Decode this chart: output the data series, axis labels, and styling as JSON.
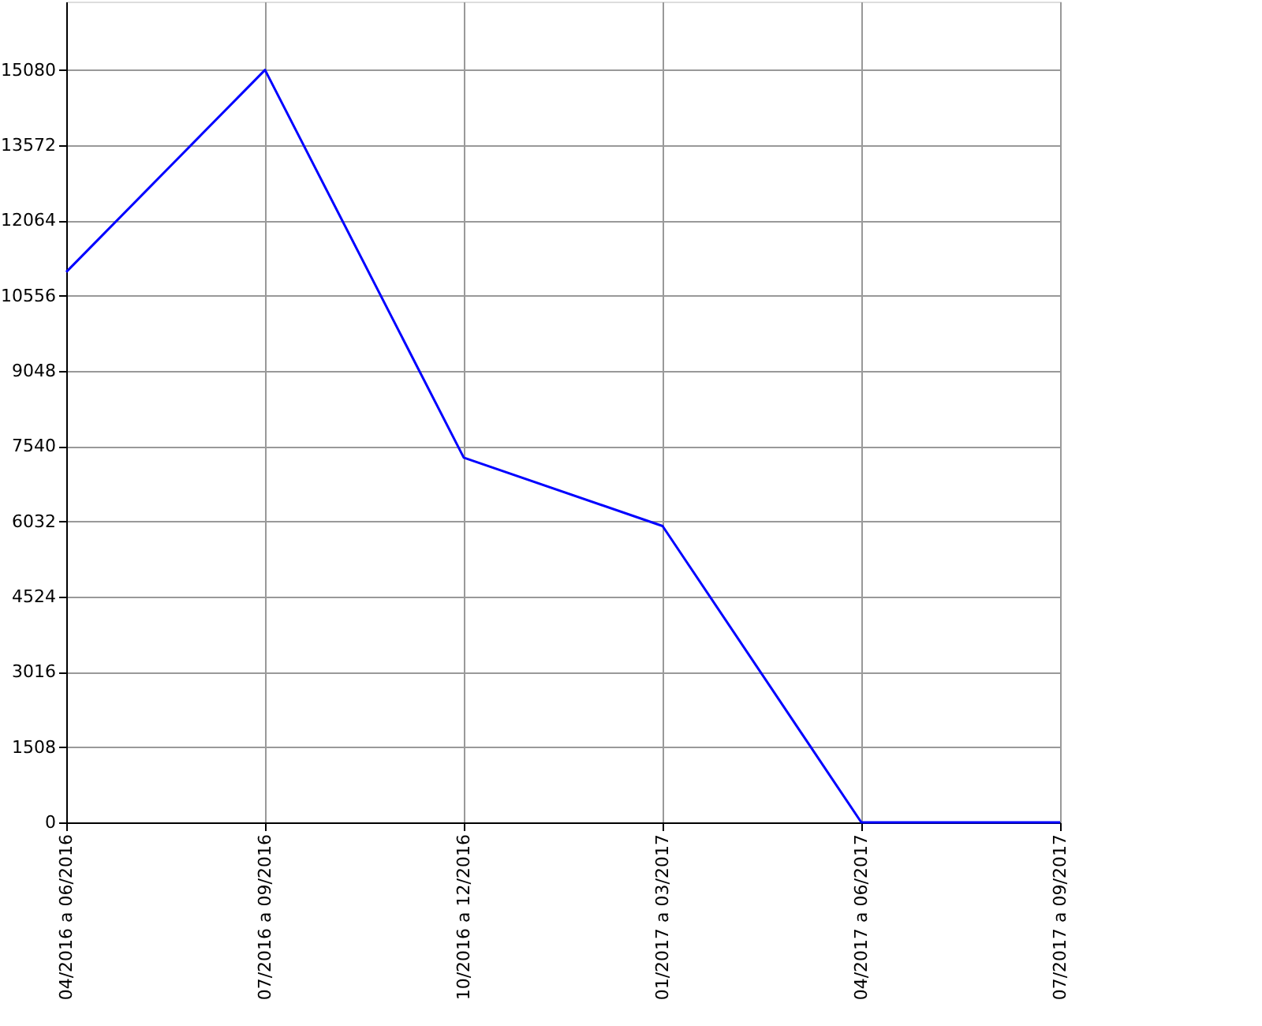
{
  "chart_data": {
    "type": "line",
    "categories": [
      "04/2016  a  06/2016",
      "07/2016  a  09/2016",
      "10/2016  a  12/2016",
      "01/2017  a  03/2017",
      "04/2017  a  06/2017",
      "07/2017  a  09/2017"
    ],
    "series": [
      {
        "color": "#0000ff",
        "values": [
          11030,
          15080,
          7310,
          5940,
          0,
          0
        ]
      }
    ],
    "ylim": [
      0,
      16450
    ],
    "yticks": [
      0,
      1508,
      3016,
      4524,
      6032,
      7540,
      9048,
      10556,
      12064,
      13572,
      15080
    ],
    "grid": true,
    "legend": false,
    "marker": "none",
    "line_style": "solid"
  }
}
